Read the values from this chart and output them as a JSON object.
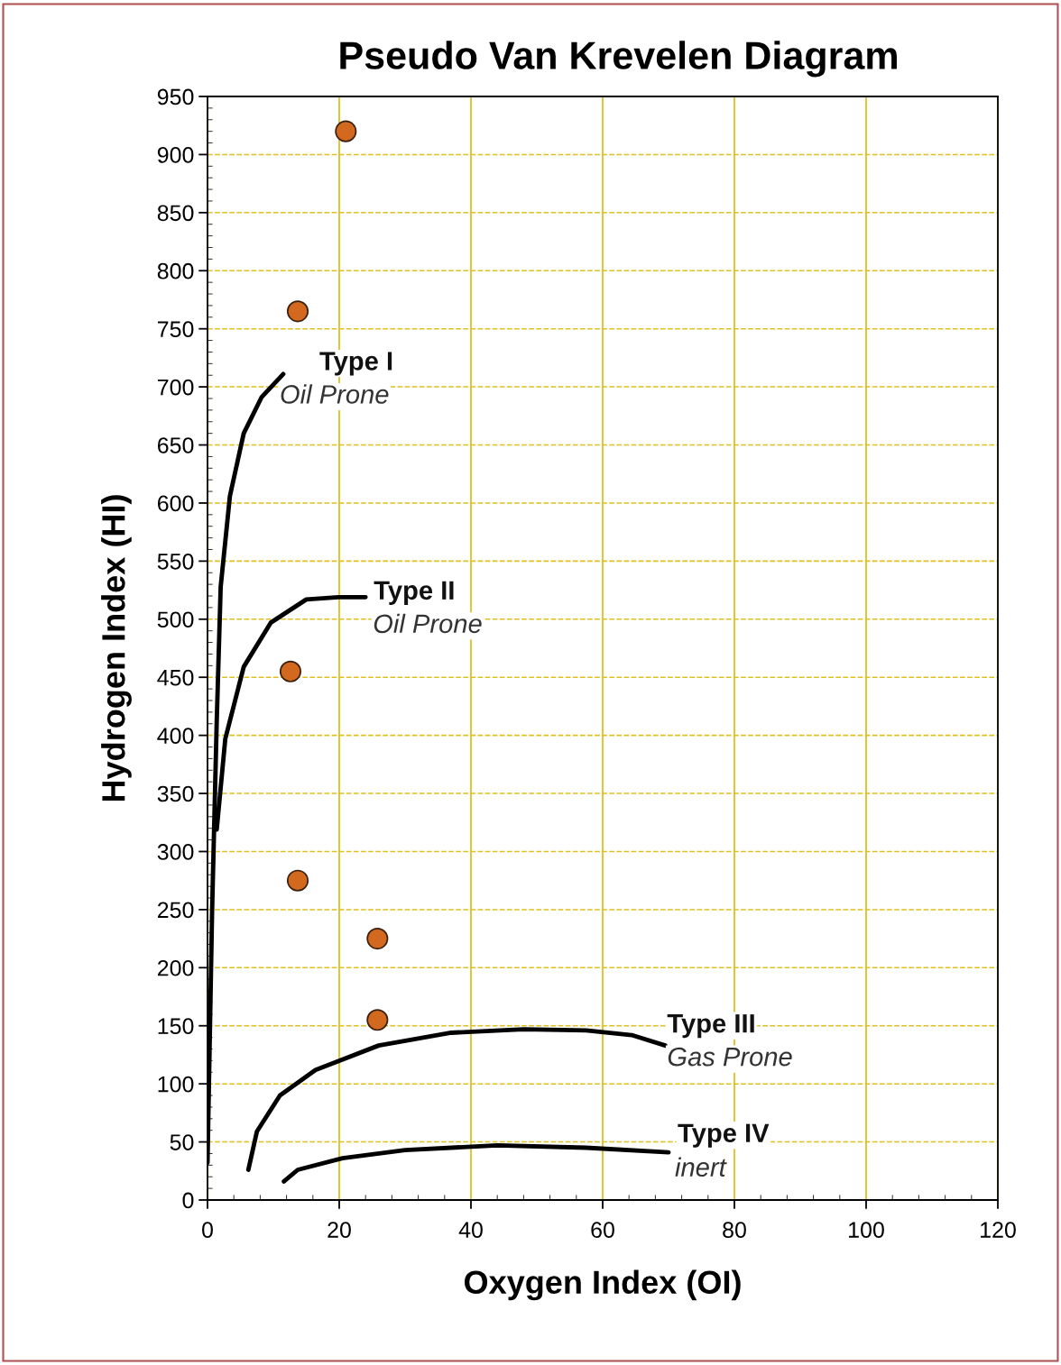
{
  "chart_data": {
    "type": "scatter",
    "title": "Pseudo Van Krevelen Diagram",
    "xlabel": "Oxygen Index (OI)",
    "ylabel": "Hydrogen Index (HI)",
    "xlim": [
      0,
      120
    ],
    "xticks": [
      0,
      20,
      40,
      60,
      80,
      100,
      120
    ],
    "ylim": [
      0,
      950
    ],
    "yticks": [
      0,
      50,
      100,
      150,
      200,
      250,
      300,
      350,
      400,
      450,
      500,
      550,
      600,
      650,
      700,
      750,
      800,
      850,
      900,
      950
    ],
    "grid": true,
    "series": [
      {
        "marker": "circle",
        "color": "#d2691e",
        "x": [
          21,
          13.7,
          12.6,
          13.7,
          25.8,
          25.8
        ],
        "values": [
          920,
          765,
          455,
          275,
          225,
          155
        ]
      },
      {
        "type": "line",
        "color": "#000000",
        "x": [
          0,
          0.7,
          1.4,
          2,
          3.4,
          5.5,
          8.2,
          11.5
        ],
        "values": [
          32,
          250,
          412,
          528,
          606,
          660,
          691,
          711
        ]
      },
      {
        "type": "line",
        "color": "#000000",
        "x": [
          1.4,
          2.7,
          5.5,
          9.6,
          15,
          19.9,
          24
        ],
        "values": [
          319,
          397,
          459,
          497,
          517,
          519,
          519
        ]
      },
      {
        "type": "line",
        "color": "#000000",
        "x": [
          6.2,
          7.5,
          11,
          16.4,
          26,
          37,
          48,
          57.5,
          64.4,
          69.5
        ],
        "values": [
          26,
          59,
          90,
          112,
          133,
          144,
          147,
          146,
          142,
          133
        ]
      },
      {
        "type": "line",
        "color": "#000000",
        "x": [
          11.6,
          13.7,
          20.5,
          30,
          44,
          57.5,
          70
        ],
        "values": [
          16,
          26,
          36,
          43,
          47,
          45,
          41
        ]
      }
    ],
    "annotations": [
      "Type I",
      "Oil Prone",
      "Type II",
      "Oil Prone",
      "Type III",
      "Gas Prone",
      "Type IV",
      "inert"
    ]
  }
}
